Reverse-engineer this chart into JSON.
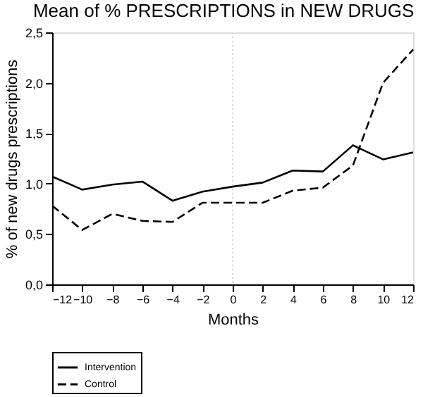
{
  "chart_data": {
    "type": "line",
    "title": "Mean of % PRESCRIPTIONS in NEW DRUGS",
    "xlabel": "Months",
    "ylabel": "% of new drugs prescriptions",
    "x": [
      -12,
      -10,
      -8,
      -6,
      -4,
      -2,
      0,
      2,
      4,
      6,
      8,
      10,
      12
    ],
    "series": [
      {
        "name": "Intervention",
        "color": "#000000",
        "line_style": "solid",
        "values": [
          1.07,
          0.94,
          0.99,
          1.02,
          0.83,
          0.92,
          0.97,
          1.01,
          1.13,
          1.12,
          1.38,
          1.24,
          1.31
        ]
      },
      {
        "name": "Control",
        "color": "#000000",
        "line_style": "dashed",
        "values": [
          0.78,
          0.54,
          0.7,
          0.63,
          0.62,
          0.81,
          0.81,
          0.81,
          0.93,
          0.96,
          1.18,
          2.0,
          2.33
        ]
      }
    ],
    "xlim": [
      -12,
      12
    ],
    "xticks": [
      -12,
      -10,
      -8,
      -6,
      -4,
      -2,
      0,
      2,
      4,
      6,
      8,
      10,
      12
    ],
    "ylim": [
      0,
      2.5
    ],
    "yticks": [
      {
        "value": 0,
        "label": "0,0"
      },
      {
        "value": 0.5,
        "label": "0,5"
      },
      {
        "value": 1.0,
        "label": "1,0"
      },
      {
        "value": 1.5,
        "label": "1,5"
      },
      {
        "value": 2.0,
        "label": "2,0"
      },
      {
        "value": 2.5,
        "label": "2,5"
      }
    ],
    "ref_lines": [
      {
        "axis": "x",
        "value": 0,
        "color": "#d0d0d0",
        "line_style": "dotted"
      }
    ],
    "grid": false,
    "legend": "bottom left",
    "marker": "none"
  }
}
